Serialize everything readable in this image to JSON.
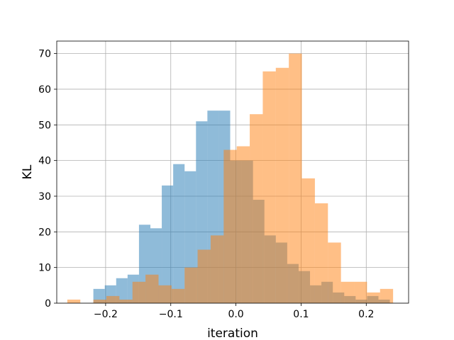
{
  "chart_data": {
    "type": "bar",
    "subtype": "histogram",
    "title": "",
    "xlabel": "iteration",
    "ylabel": "KL",
    "xlim": [
      -0.275,
      0.265
    ],
    "ylim": [
      0,
      73.5
    ],
    "grid": true,
    "x_ticks": [
      -0.2,
      -0.1,
      0.0,
      0.1,
      0.2
    ],
    "x_tick_labels": [
      "−0.2",
      "−0.1",
      "0.0",
      "0.1",
      "0.2"
    ],
    "y_ticks": [
      0,
      10,
      20,
      30,
      40,
      50,
      60,
      70
    ],
    "y_tick_labels": [
      "0",
      "10",
      "20",
      "30",
      "40",
      "50",
      "60",
      "70"
    ],
    "series": [
      {
        "color": "#1f77b4",
        "alpha": 0.5,
        "bins": [
          {
            "x0": -0.2188,
            "x1": -0.2013,
            "count": 4
          },
          {
            "x0": -0.2013,
            "x1": -0.1838,
            "count": 5
          },
          {
            "x0": -0.1838,
            "x1": -0.1663,
            "count": 7
          },
          {
            "x0": -0.1663,
            "x1": -0.1488,
            "count": 8
          },
          {
            "x0": -0.1488,
            "x1": -0.1313,
            "count": 22
          },
          {
            "x0": -0.1313,
            "x1": -0.1138,
            "count": 21
          },
          {
            "x0": -0.1138,
            "x1": -0.0963,
            "count": 33
          },
          {
            "x0": -0.0963,
            "x1": -0.0788,
            "count": 39
          },
          {
            "x0": -0.0788,
            "x1": -0.0613,
            "count": 37
          },
          {
            "x0": -0.0613,
            "x1": -0.0438,
            "count": 51
          },
          {
            "x0": -0.0438,
            "x1": -0.0263,
            "count": 54
          },
          {
            "x0": -0.0263,
            "x1": -0.0088,
            "count": 54
          },
          {
            "x0": -0.0088,
            "x1": 0.0087,
            "count": 40
          },
          {
            "x0": 0.0087,
            "x1": 0.0262,
            "count": 40
          },
          {
            "x0": 0.0262,
            "x1": 0.0437,
            "count": 29
          },
          {
            "x0": 0.0437,
            "x1": 0.0612,
            "count": 19
          },
          {
            "x0": 0.0612,
            "x1": 0.0787,
            "count": 17
          },
          {
            "x0": 0.0787,
            "x1": 0.0962,
            "count": 11
          },
          {
            "x0": 0.0962,
            "x1": 0.1137,
            "count": 9
          },
          {
            "x0": 0.1137,
            "x1": 0.1312,
            "count": 5
          },
          {
            "x0": 0.1312,
            "x1": 0.1487,
            "count": 6
          },
          {
            "x0": 0.1487,
            "x1": 0.1662,
            "count": 3
          },
          {
            "x0": 0.1662,
            "x1": 0.1837,
            "count": 2
          },
          {
            "x0": 0.1837,
            "x1": 0.2012,
            "count": 1
          },
          {
            "x0": 0.2012,
            "x1": 0.2187,
            "count": 2
          },
          {
            "x0": 0.2187,
            "x1": 0.2362,
            "count": 1
          }
        ]
      },
      {
        "color": "#ff7f0e",
        "alpha": 0.5,
        "bins": [
          {
            "x0": -0.2588,
            "x1": -0.2388,
            "count": 1
          },
          {
            "x0": -0.2388,
            "x1": -0.2188,
            "count": 0
          },
          {
            "x0": -0.2188,
            "x1": -0.1988,
            "count": 1
          },
          {
            "x0": -0.1988,
            "x1": -0.1788,
            "count": 2
          },
          {
            "x0": -0.1788,
            "x1": -0.1588,
            "count": 1
          },
          {
            "x0": -0.1588,
            "x1": -0.1388,
            "count": 6
          },
          {
            "x0": -0.1388,
            "x1": -0.1188,
            "count": 8
          },
          {
            "x0": -0.1188,
            "x1": -0.0988,
            "count": 5
          },
          {
            "x0": -0.0988,
            "x1": -0.0788,
            "count": 4
          },
          {
            "x0": -0.0788,
            "x1": -0.0588,
            "count": 10
          },
          {
            "x0": -0.0588,
            "x1": -0.0388,
            "count": 15
          },
          {
            "x0": -0.0388,
            "x1": -0.0188,
            "count": 19
          },
          {
            "x0": -0.0188,
            "x1": 0.0012,
            "count": 43
          },
          {
            "x0": 0.0012,
            "x1": 0.0212,
            "count": 44
          },
          {
            "x0": 0.0212,
            "x1": 0.0412,
            "count": 53
          },
          {
            "x0": 0.0412,
            "x1": 0.0612,
            "count": 65
          },
          {
            "x0": 0.0612,
            "x1": 0.0812,
            "count": 66
          },
          {
            "x0": 0.0812,
            "x1": 0.1012,
            "count": 70
          },
          {
            "x0": 0.1012,
            "x1": 0.1212,
            "count": 35
          },
          {
            "x0": 0.1212,
            "x1": 0.1412,
            "count": 28
          },
          {
            "x0": 0.1412,
            "x1": 0.1612,
            "count": 17
          },
          {
            "x0": 0.1612,
            "x1": 0.1812,
            "count": 6
          },
          {
            "x0": 0.1812,
            "x1": 0.2012,
            "count": 6
          },
          {
            "x0": 0.2012,
            "x1": 0.2212,
            "count": 3
          },
          {
            "x0": 0.2212,
            "x1": 0.2412,
            "count": 4
          }
        ]
      }
    ]
  }
}
